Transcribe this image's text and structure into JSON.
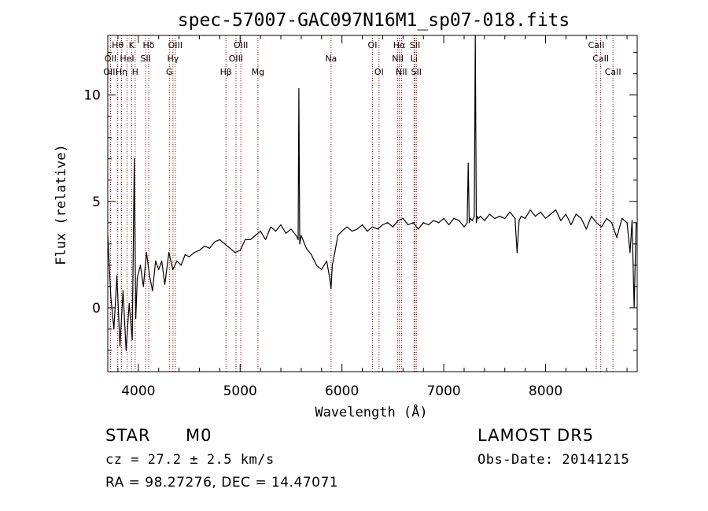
{
  "footer": {
    "object_class": "STAR",
    "subclass": "M0",
    "survey": "LAMOST DR5",
    "redshift": "cz = 27.2 ± 2.5 km/s",
    "obs_date": "Obs-Date: 20141215",
    "coords": "RA =  98.27276, DEC =  14.47071"
  },
  "chart_data": {
    "type": "line",
    "title": "spec-57007-GAC097N16M1_sp07-018.fits",
    "xlabel": "Wavelength (Å)",
    "ylabel": "Flux (relative)",
    "xlim": [
      3700,
      8900
    ],
    "ylim": [
      -3.0,
      12.8
    ],
    "x_ticks": [
      4000,
      5000,
      6000,
      7000,
      8000
    ],
    "x_ticklabels": [
      "4000",
      "5000",
      "6000",
      "7000",
      "8000"
    ],
    "y_ticks": [
      0,
      5,
      10
    ],
    "y_ticklabels": [
      "0",
      "5",
      "10"
    ],
    "grid": false,
    "line_color": "#000000",
    "marker_line_color": "#a00000",
    "spectral_lines": [
      {
        "label": "OII",
        "x": 3727,
        "row": 2
      },
      {
        "label": "OIII",
        "x": 3727,
        "row": 3
      },
      {
        "label": "Hθ",
        "x": 3798,
        "row": 1
      },
      {
        "label": "Hη",
        "x": 3835,
        "row": 3
      },
      {
        "label": "HeI",
        "x": 3889,
        "row": 2
      },
      {
        "label": "K",
        "x": 3934,
        "row": 1
      },
      {
        "label": "H",
        "x": 3969,
        "row": 3
      },
      {
        "label": "Hδ",
        "x": 4102,
        "row": 1
      },
      {
        "label": "SII",
        "x": 4072,
        "row": 2
      },
      {
        "label": "OIII",
        "x": 4363,
        "row": 1
      },
      {
        "label": "Hγ",
        "x": 4340,
        "row": 2
      },
      {
        "label": "G",
        "x": 4305,
        "row": 3
      },
      {
        "label": "Hβ",
        "x": 4861,
        "row": 3
      },
      {
        "label": "OIII",
        "x": 4959,
        "row": 2
      },
      {
        "label": "OIII",
        "x": 5007,
        "row": 1
      },
      {
        "label": "Mg",
        "x": 5175,
        "row": 3
      },
      {
        "label": "Na",
        "x": 5893,
        "row": 2
      },
      {
        "label": "OI",
        "x": 6300,
        "row": 1
      },
      {
        "label": "OI",
        "x": 6364,
        "row": 3
      },
      {
        "label": "NII",
        "x": 6548,
        "row": 2
      },
      {
        "label": "Hα",
        "x": 6563,
        "row": 1
      },
      {
        "label": "NII",
        "x": 6584,
        "row": 3
      },
      {
        "label": "SII",
        "x": 6717,
        "row": 1
      },
      {
        "label": "Li",
        "x": 6708,
        "row": 2
      },
      {
        "label": "SII",
        "x": 6731,
        "row": 3
      },
      {
        "label": "CaII",
        "x": 8498,
        "row": 1
      },
      {
        "label": "CaII",
        "x": 8542,
        "row": 2
      },
      {
        "label": "CaII",
        "x": 8662,
        "row": 3
      }
    ],
    "series": [
      {
        "x": [
          3700,
          3730,
          3760,
          3790,
          3820,
          3850,
          3880,
          3910,
          3940,
          3960,
          3975,
          3990,
          4020,
          4050,
          4080,
          4110,
          4140,
          4170,
          4200,
          4230,
          4260,
          4300,
          4340,
          4380,
          4420,
          4460,
          4500,
          4550,
          4600,
          4650,
          4700,
          4750,
          4800,
          4850,
          4900,
          4950,
          5000,
          5050,
          5100,
          5150,
          5200,
          5250,
          5300,
          5350,
          5400,
          5450,
          5500,
          5550,
          5570,
          5577,
          5585,
          5600,
          5650,
          5700,
          5750,
          5800,
          5850,
          5880,
          5893,
          5905,
          5930,
          5960,
          6000,
          6050,
          6100,
          6150,
          6200,
          6250,
          6300,
          6350,
          6400,
          6450,
          6500,
          6550,
          6600,
          6650,
          6700,
          6750,
          6800,
          6850,
          6900,
          6950,
          7000,
          7050,
          7100,
          7150,
          7200,
          7230,
          7240,
          7250,
          7260,
          7280,
          7300,
          7310,
          7320,
          7330,
          7340,
          7360,
          7400,
          7450,
          7500,
          7550,
          7600,
          7650,
          7700,
          7720,
          7740,
          7760,
          7800,
          7850,
          7900,
          7950,
          8000,
          8050,
          8100,
          8150,
          8200,
          8250,
          8300,
          8350,
          8400,
          8450,
          8500,
          8550,
          8600,
          8650,
          8700,
          8750,
          8800,
          8830,
          8850,
          8870,
          8890
        ],
        "values": [
          3.4,
          0.5,
          -1.0,
          1.5,
          -1.8,
          0.8,
          -2.0,
          0.2,
          -1.5,
          7.0,
          -0.5,
          1.4,
          2.0,
          1.0,
          2.6,
          1.5,
          0.8,
          2.2,
          1.8,
          2.2,
          1.1,
          2.6,
          1.8,
          2.2,
          2.0,
          2.5,
          2.4,
          2.6,
          2.7,
          2.9,
          2.8,
          3.1,
          3.2,
          3.0,
          2.8,
          2.6,
          2.7,
          3.2,
          3.2,
          3.4,
          3.6,
          3.2,
          3.8,
          3.6,
          3.9,
          3.5,
          3.7,
          3.4,
          3.2,
          10.3,
          3.0,
          3.4,
          2.8,
          2.5,
          2.0,
          1.8,
          2.2,
          1.4,
          0.9,
          2.0,
          2.6,
          3.4,
          3.6,
          3.8,
          3.6,
          3.7,
          3.9,
          3.6,
          3.8,
          3.7,
          3.9,
          4.0,
          3.8,
          4.1,
          4.2,
          3.9,
          4.0,
          3.7,
          4.0,
          3.9,
          4.1,
          4.0,
          4.2,
          3.9,
          4.2,
          4.1,
          3.8,
          4.0,
          6.8,
          4.0,
          4.2,
          4.1,
          4.3,
          12.8,
          4.0,
          4.3,
          4.2,
          4.3,
          4.1,
          4.4,
          4.2,
          4.3,
          4.2,
          4.5,
          4.2,
          2.6,
          4.1,
          4.3,
          4.2,
          4.6,
          4.3,
          4.5,
          4.2,
          4.4,
          4.6,
          4.1,
          4.4,
          3.9,
          4.4,
          4.2,
          3.7,
          4.3,
          4.0,
          3.8,
          4.2,
          4.0,
          3.3,
          4.2,
          4.0,
          2.6,
          4.1,
          0.0,
          4.0
        ]
      }
    ]
  }
}
